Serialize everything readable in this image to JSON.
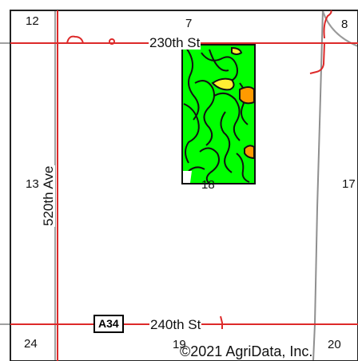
{
  "map": {
    "sections": [
      "12",
      "7",
      "8",
      "13",
      "18",
      "17",
      "24",
      "19",
      "20"
    ],
    "roads": {
      "north": "230th St",
      "south": "240th St",
      "west": "520th Ave"
    },
    "highway_shield": "A34",
    "copyright": "©2021 AgriData, Inc.",
    "colors": {
      "road": "#dd2a2a",
      "section_line": "#9a9a9a",
      "border": "#222222",
      "field_fill": "#00ff00",
      "field_outline": "#111111",
      "soil_orange": "#ff9a00",
      "soil_yellow": "#ffee33"
    }
  }
}
